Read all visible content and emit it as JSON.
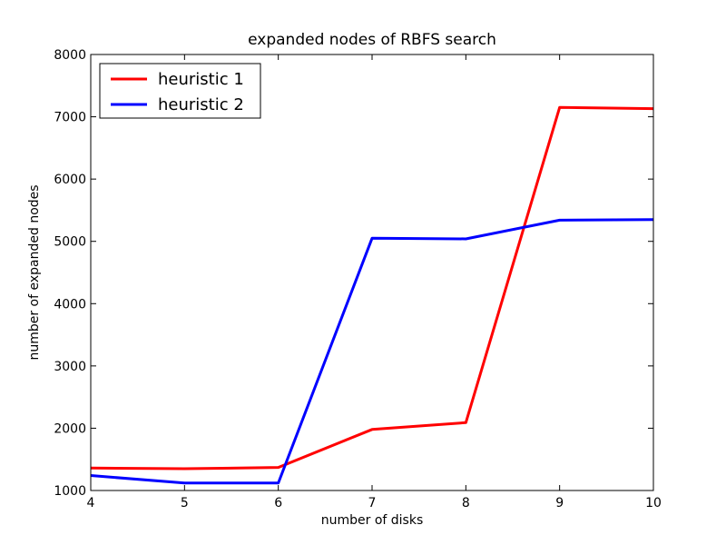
{
  "chart_data": {
    "type": "line",
    "title": "expanded nodes of RBFS search",
    "xlabel": "number of disks",
    "ylabel": "number of expanded nodes",
    "x": [
      4,
      5,
      6,
      7,
      8,
      9,
      10
    ],
    "xlim": [
      4,
      10
    ],
    "ylim": [
      1000,
      8000
    ],
    "xticks": [
      "4",
      "5",
      "6",
      "7",
      "8",
      "9",
      "10"
    ],
    "yticks": [
      "1000",
      "2000",
      "3000",
      "4000",
      "5000",
      "6000",
      "7000",
      "8000"
    ],
    "grid": false,
    "legend_position": "top-left",
    "series": [
      {
        "name": "heuristic 1",
        "color": "#ff0000",
        "values": [
          1360,
          1350,
          1370,
          1980,
          2090,
          7150,
          7130
        ]
      },
      {
        "name": "heuristic 2",
        "color": "#0000ff",
        "values": [
          1240,
          1120,
          1120,
          5050,
          5040,
          5340,
          5350
        ]
      }
    ]
  }
}
